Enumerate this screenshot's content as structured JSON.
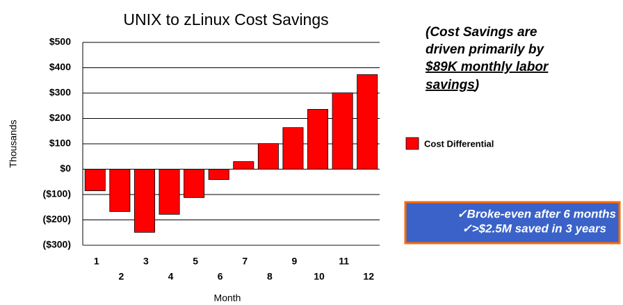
{
  "chart_data": {
    "type": "bar",
    "title": "UNIX to zLinux Cost Savings",
    "x_label": "Month",
    "y_label": "Thousands",
    "categories": [
      "1",
      "2",
      "3",
      "4",
      "5",
      "6",
      "7",
      "8",
      "9",
      "10",
      "11",
      "12"
    ],
    "series": [
      {
        "name": "Cost Differential",
        "color": "#ff0000",
        "values": [
          -85,
          -167,
          -249,
          -178,
          -112,
          -41,
          30,
          101,
          164,
          236,
          301,
          373
        ]
      }
    ],
    "ylim": [
      -300,
      500
    ],
    "yticks": [
      {
        "value": -300,
        "label": "($300)"
      },
      {
        "value": -200,
        "label": "($200)"
      },
      {
        "value": -100,
        "label": "($100)"
      },
      {
        "value": 0,
        "label": "$0"
      },
      {
        "value": 100,
        "label": "$100"
      },
      {
        "value": 200,
        "label": "$200"
      },
      {
        "value": 300,
        "label": "$300"
      },
      {
        "value": 400,
        "label": "$400"
      },
      {
        "value": 500,
        "label": "$500"
      }
    ],
    "grid": true,
    "legend": "right",
    "annotation": [
      "(Cost Savings are",
      "driven primarily by",
      "$89K monthly labor",
      "savings",
      ")"
    ],
    "callout": [
      "✓Broke-even after 6 months",
      "✓>$2.5M saved in 3 years"
    ]
  }
}
